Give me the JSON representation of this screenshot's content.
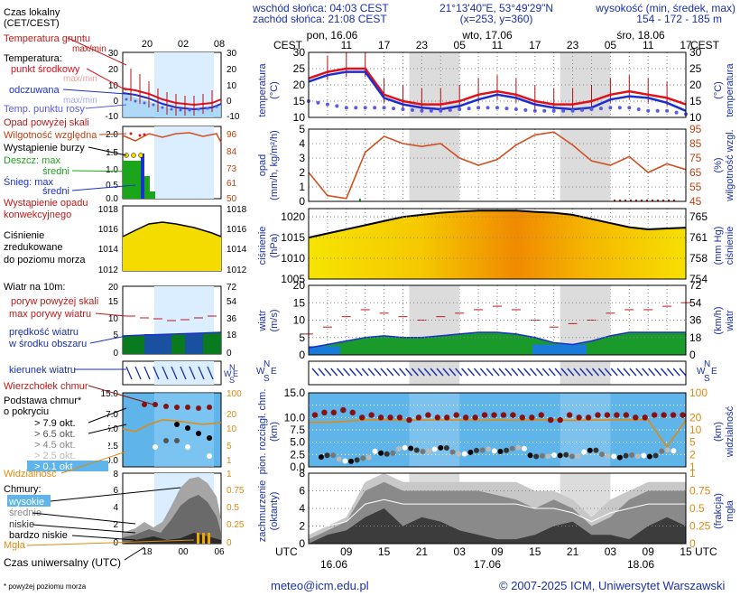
{
  "header": {
    "sunrise": "wschód słońca: 04:03 CEST",
    "sunset": "zachód słońca: 21:08 CEST",
    "coords": "21°13'40\"E, 53°49'29\"N",
    "grid": "(x=253, y=360)",
    "alt_title": "wysokość (min, średek, max)",
    "alt_values": "154 - 172 - 185 m"
  },
  "legend": {
    "local_time_title": "Czas lokalny",
    "local_time_sub": "(CET/CEST)",
    "local_hours": [
      "20",
      "02",
      "08"
    ],
    "utc_hours": [
      "18",
      "00",
      "06"
    ],
    "utc_title": "Czas uniwersalny (UTC)",
    "soil": "Temperatura gruntu",
    "soil_sub": "max/min",
    "temp_title": "Temperatura:",
    "temp_mid": "punkt środkowy",
    "temp_max_min": "max/min",
    "temp_perceived": "odczuwana",
    "temp_max_min2": "max/min",
    "dew": "Temp. punktu rosy",
    "precip_above": "Opad powyżej skali",
    "humidity": "Wilgotność względna",
    "storm": "Wystąpienie burzy",
    "rain_max": "Deszcz: max",
    "rain_mean": "średni",
    "snow_max": "Śnieg:  max",
    "snow_mean": "średni",
    "precip_occ": "Wystąpienie opadu",
    "precip_occ2": "konwekcyjnego",
    "pressure1": "Ciśnienie",
    "pressure2": "zredukowane",
    "pressure3": "do poziomu morza",
    "wind_title": "Wiatr na 10m:",
    "gust_above": "poryw powyżej skali",
    "gust_max": "max porywy wiatru",
    "wind_mean1": "prędkość wiatru",
    "wind_mean2": "w środku obszaru",
    "wind_dir": "kierunek wiatru",
    "cloud_top": "Wierzchołek chmur",
    "cloud_base1": "Podstawa chmur*",
    "cloud_base2": "o pokryciu",
    "okta": [
      "> 7.9 okt.",
      "> 6.5 okt.",
      "> 4.5 okt.",
      "> 2.5 okt.",
      "> 0.1 okt."
    ],
    "visibility": "Widzialność",
    "clouds_title": "Chmury:",
    "cl_high": "wysokie",
    "cl_mid": "średnie",
    "cl_low": "niskie",
    "cl_vlow": "bardzo niskie",
    "fog": "Mgła",
    "footnote": "* powyżej poziomu morza"
  },
  "main": {
    "days": [
      "pon, 16.06",
      "wto, 17.06",
      "śro, 18.06"
    ],
    "days_short": [
      "16.06",
      "17.06",
      "18.06"
    ],
    "tz_top": "CEST",
    "tz_bottom": "UTC",
    "local_hours": [
      "11",
      "17",
      "23",
      "05",
      "11",
      "17",
      "23",
      "05",
      "11",
      "17"
    ],
    "utc_hours": [
      "09",
      "15",
      "21",
      "03",
      "09",
      "15",
      "21",
      "03",
      "09",
      "15"
    ]
  },
  "labels": {
    "temp_l": "temperatura",
    "temp_lu": "(°C)",
    "temp_r": "temperatura",
    "temp_ru": "(°C)",
    "rain_l": "opad",
    "rain_lu": "(mm/h, kg/m²/h)",
    "rain_r": "wilgotność wzgl.",
    "rain_ru": "(%)",
    "pres_l": "ciśnienie",
    "pres_lu": "(hPa)",
    "pres_r": "ciśnienie",
    "pres_ru": "(mm Hg)",
    "wind_l": "wiatr",
    "wind_lu": "(m/s)",
    "wind_r": "wiatr",
    "wind_ru": "(km/h)",
    "cloud_l1": "pion. rozciągł. chm.",
    "cloud_l2": "(km)",
    "cloud_r1": "widzialność",
    "cloud_r2": "(km)",
    "cov_l1": "zachmurzenie",
    "cov_l2": "(oktanty)",
    "cov_r1": "mgła",
    "cov_r2": "(frakcja)"
  },
  "footer": {
    "email": "meteo@icm.edu.pl",
    "copyright": "© 2007-2025 ICM, Uniwersytet Warszawski"
  },
  "colors": {
    "temp": "#e0101b",
    "perceived": "#1a2fcf",
    "dew": "#5a5ae6",
    "soil": "#b81010",
    "humidity": "#d05020",
    "rain": "#1aa51a",
    "snow": "#1a2fcf",
    "pressure": "#f5dc00",
    "wind_slow": "#0a7a1e",
    "gust": "#c01818",
    "cloud_bg": "#5fb4ea",
    "vis": "#e08a10"
  },
  "chart_data": [
    {
      "type": "line",
      "title": "temperatura (°C)",
      "x_hours_utc": [
        3,
        6,
        9,
        12,
        15,
        18,
        21,
        24,
        27,
        30,
        33,
        36,
        39,
        42,
        45,
        48,
        51,
        54,
        57,
        60,
        63
      ],
      "ylim": [
        10,
        30
      ],
      "y_ticks": [
        10,
        15,
        20,
        25,
        30
      ],
      "right_ticks": [
        10,
        15,
        20,
        25,
        30
      ],
      "series": [
        {
          "name": "punkt środkowy",
          "values": [
            22,
            24,
            25,
            25,
            17,
            15,
            14,
            14,
            15,
            17,
            18,
            17,
            15,
            14,
            14,
            15,
            17,
            18,
            17,
            16,
            14
          ]
        },
        {
          "name": "odczuwana",
          "values": [
            21,
            23,
            24,
            24,
            16,
            14,
            13,
            12.5,
            13.5,
            15.5,
            17,
            16,
            14,
            13,
            12.5,
            13,
            15.5,
            16.5,
            16,
            14.5,
            12
          ]
        },
        {
          "name": "Temp. punktu rosy",
          "values": [
            15,
            14,
            13,
            13,
            13,
            12.5,
            12,
            12,
            12.5,
            13,
            13,
            12.5,
            12,
            12,
            12,
            12.5,
            13,
            13,
            12,
            12,
            11
          ]
        }
      ]
    },
    {
      "type": "line",
      "title": "opad (mm/h, kg/m²/h)",
      "x_hours_utc": [
        3,
        6,
        9,
        12,
        15,
        18,
        21,
        24,
        27,
        30,
        33,
        36,
        39,
        42,
        45,
        48,
        51,
        54,
        57,
        60,
        63
      ],
      "ylim": [
        0,
        5
      ],
      "y_ticks": [
        0,
        1,
        2,
        3,
        4,
        5
      ],
      "right_ticks": [
        45,
        55,
        65,
        75,
        85,
        95
      ],
      "series": [
        {
          "name": "Wilgotność względna",
          "values": [
            65,
            49,
            47,
            79,
            90,
            85,
            83,
            85,
            75,
            70,
            74,
            84,
            91,
            93,
            84,
            73,
            70,
            76,
            65,
            71,
            67
          ]
        }
      ]
    },
    {
      "type": "area",
      "title": "ciśnienie (hPa)",
      "x_hours_utc": [
        3,
        6,
        9,
        12,
        15,
        18,
        21,
        24,
        27,
        30,
        33,
        36,
        39,
        42,
        45,
        48,
        51,
        54,
        57,
        60,
        63
      ],
      "ylim": [
        1005,
        1022
      ],
      "y_ticks": [
        1005,
        1010,
        1015,
        1020
      ],
      "right_ticks": [
        754,
        758,
        761,
        765
      ],
      "values": [
        1015,
        1016,
        1017,
        1018,
        1019,
        1020,
        1020.5,
        1021,
        1021.3,
        1021.5,
        1021.5,
        1021.5,
        1021.2,
        1021,
        1020.5,
        1019.5,
        1018.5,
        1017.5,
        1017,
        1017.2,
        1017.4
      ]
    },
    {
      "type": "area",
      "title": "wiatr (m/s)",
      "x_hours_utc": [
        3,
        6,
        9,
        12,
        15,
        18,
        21,
        24,
        27,
        30,
        33,
        36,
        39,
        42,
        45,
        48,
        51,
        54,
        57,
        60,
        63
      ],
      "ylim": [
        0,
        20
      ],
      "y_ticks": [
        0,
        5,
        10,
        15,
        20
      ],
      "right_ticks": [
        0,
        18,
        36,
        54,
        72
      ],
      "series": [
        {
          "name": "prędkość wiatru",
          "values": [
            2,
            3,
            4,
            5,
            5.5,
            5,
            5,
            5.5,
            6,
            6.5,
            6.5,
            6,
            5,
            3.5,
            3,
            4,
            5.5,
            6.5,
            6.5,
            6.5,
            6.5
          ]
        },
        {
          "name": "max porywy wiatru",
          "values": [
            6,
            8,
            11,
            13,
            12,
            11,
            10,
            11,
            12,
            13,
            14,
            13,
            10,
            8,
            9,
            10,
            12,
            13,
            13,
            14,
            15
          ]
        }
      ]
    },
    {
      "type": "scatter",
      "title": "pion. rozciągł. chm. (km)",
      "x_hours_utc": [
        3,
        6,
        9,
        12,
        15,
        18,
        21,
        24,
        27,
        30,
        33,
        36,
        39,
        42,
        45,
        48,
        51,
        54,
        57,
        60,
        63
      ],
      "ylim": [
        0,
        15
      ],
      "y_ticks": [
        0,
        2.5,
        5,
        7.5,
        10,
        12.5,
        15
      ],
      "right_ticks": [
        0,
        1,
        5,
        10,
        20,
        100
      ],
      "series": [
        {
          "name": "Wierzchołek chmur",
          "values": [
            10,
            11,
            11,
            10,
            10,
            9.5,
            10,
            10,
            10,
            10,
            10.5,
            10,
            10,
            9.5,
            10,
            10,
            10.5,
            10,
            10,
            10.5,
            10
          ]
        },
        {
          "name": "Podstawa chmur",
          "values": [
            2,
            2,
            1.5,
            1.5,
            3,
            3.5,
            3.5,
            3.5,
            3,
            3,
            3.5,
            3.5,
            2.5,
            2,
            2.5,
            3,
            2.5,
            2,
            2.5,
            3,
            3.5
          ]
        },
        {
          "name": "Widzialność",
          "values": [
            20,
            20,
            25,
            30,
            30,
            28,
            30,
            30,
            30,
            28,
            30,
            28,
            30,
            30,
            28,
            30,
            30,
            30,
            30,
            2,
            30
          ]
        }
      ]
    },
    {
      "type": "area",
      "title": "zachmurzenie (oktanty)",
      "x_hours_utc": [
        3,
        6,
        9,
        12,
        15,
        18,
        21,
        24,
        27,
        30,
        33,
        36,
        39,
        42,
        45,
        48,
        51,
        54,
        57,
        60,
        63
      ],
      "ylim": [
        0,
        8
      ],
      "y_ticks": [
        0,
        2,
        4,
        6,
        8
      ],
      "right_ticks": [
        0,
        0.25,
        0.5,
        0.75,
        1
      ],
      "series": [
        {
          "name": "wysokie",
          "values": [
            1,
            2,
            3,
            7,
            8,
            7,
            7,
            7,
            7,
            7,
            7,
            7,
            6,
            6,
            5,
            3,
            5,
            6,
            7,
            7,
            7
          ]
        },
        {
          "name": "średnie",
          "values": [
            0.5,
            1.5,
            2.5,
            6,
            7,
            6,
            6,
            6,
            6,
            6,
            5.5,
            5,
            4,
            5,
            4,
            2,
            3,
            5,
            6,
            6,
            6
          ]
        },
        {
          "name": "niskie",
          "values": [
            0,
            1,
            1.5,
            3,
            4,
            2,
            3,
            2.5,
            1.5,
            1,
            0.5,
            0.5,
            1,
            2,
            2.5,
            1,
            1,
            0.5,
            2,
            3,
            2
          ]
        }
      ]
    }
  ]
}
